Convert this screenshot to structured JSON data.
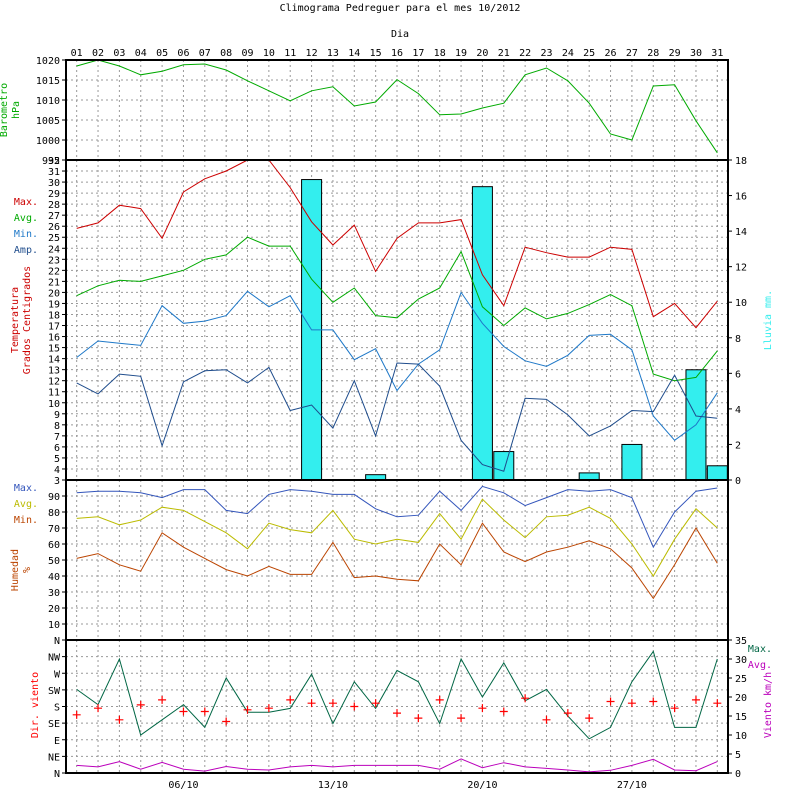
{
  "title": "Climograma Pedreguer para el mes 10/2012",
  "x_axis_title": "Dia",
  "days": [
    "01",
    "02",
    "03",
    "04",
    "05",
    "06",
    "07",
    "08",
    "09",
    "10",
    "11",
    "12",
    "13",
    "14",
    "15",
    "16",
    "17",
    "18",
    "19",
    "20",
    "21",
    "22",
    "23",
    "24",
    "25",
    "26",
    "27",
    "28",
    "29",
    "30",
    "31"
  ],
  "week_labels": [
    "06/10",
    "13/10",
    "20/10",
    "27/10"
  ],
  "colors": {
    "max": "#cc0000",
    "avg": "#00aa00",
    "min": "#1e78c8",
    "amp": "#1e4c8c",
    "rain": "#33eeee",
    "baro": "#00aa00",
    "hum_max": "#3355bb",
    "hum_avg": "#bbbb00",
    "hum_min": "#bb4400",
    "wind_dir": "#ff0000",
    "wind_max": "#006644",
    "wind_avg": "#bb00bb",
    "grid": "#999999"
  },
  "chart_data": [
    {
      "panel": "barometer",
      "type": "line",
      "ylabel": [
        "Barometro",
        "hPa"
      ],
      "ylim": [
        995,
        1020
      ],
      "yticks": [
        995,
        1000,
        1005,
        1010,
        1015,
        1020
      ],
      "series": [
        {
          "key": "baro",
          "values": [
            1018.5,
            1020,
            1018.5,
            1016.3,
            1017.2,
            1018.8,
            1019.0,
            1017.5,
            1014.8,
            1012.3,
            1009.8,
            1012.3,
            1013.3,
            1008.5,
            1009.5,
            1015.1,
            1011.6,
            1006.3,
            1006.5,
            1008.0,
            1009.2,
            1016.3,
            1018.0,
            1014.8,
            1009.2,
            1001.5,
            1000.0,
            1013.5,
            1013.8,
            1004.8,
            996.8
          ]
        }
      ]
    },
    {
      "panel": "temperature",
      "type": "line+bar",
      "ylabel": [
        "Temperatura",
        "Grados Centigrados"
      ],
      "ylim": [
        3,
        32
      ],
      "yticks": [
        3,
        4,
        5,
        6,
        7,
        8,
        9,
        10,
        11,
        12,
        13,
        14,
        15,
        16,
        17,
        18,
        19,
        20,
        21,
        22,
        23,
        24,
        25,
        26,
        27,
        28,
        29,
        30,
        31,
        32
      ],
      "y2label": "Lluvia mm.",
      "y2lim": [
        0,
        18
      ],
      "y2ticks": [
        0,
        2,
        4,
        6,
        8,
        10,
        12,
        14,
        16,
        18
      ],
      "legend": [
        {
          "key": "max",
          "label": "Max."
        },
        {
          "key": "avg",
          "label": "Avg."
        },
        {
          "key": "min",
          "label": "Min."
        },
        {
          "key": "amp",
          "label": "Amp."
        }
      ],
      "series": [
        {
          "key": "max",
          "values": [
            25.8,
            26.3,
            27.9,
            27.6,
            24.9,
            29.1,
            30.3,
            31.0,
            32.0,
            32.0,
            29.5,
            26.4,
            24.3,
            26.1,
            21.9,
            24.9,
            26.3,
            26.3,
            26.6,
            21.6,
            18.8,
            24.1,
            23.6,
            23.2,
            23.2,
            24.1,
            23.9,
            17.8,
            19.0,
            16.8,
            19.2
          ]
        },
        {
          "key": "avg",
          "values": [
            19.7,
            20.6,
            21.1,
            21.0,
            21.5,
            22.0,
            23.0,
            23.4,
            25.0,
            24.2,
            24.2,
            21.2,
            19.1,
            20.4,
            17.9,
            17.7,
            19.4,
            20.4,
            23.7,
            18.7,
            17.0,
            18.6,
            17.6,
            18.1,
            18.9,
            19.8,
            18.8,
            12.6,
            12.0,
            12.3,
            14.7
          ]
        },
        {
          "key": "min",
          "values": [
            14.1,
            15.6,
            15.4,
            15.2,
            18.8,
            17.2,
            17.4,
            17.9,
            20.1,
            18.7,
            19.7,
            16.6,
            16.6,
            13.9,
            14.9,
            11.1,
            13.5,
            14.8,
            20.0,
            17.2,
            15.1,
            13.8,
            13.3,
            14.3,
            16.1,
            16.2,
            14.8,
            8.8,
            6.6,
            8.0,
            10.9
          ]
        },
        {
          "key": "amp",
          "values": [
            11.8,
            10.8,
            12.6,
            12.4,
            6.1,
            11.9,
            12.9,
            13.0,
            11.8,
            13.2,
            9.3,
            9.8,
            7.7,
            12.0,
            7.0,
            13.6,
            13.5,
            11.5,
            6.6,
            4.4,
            3.8,
            10.4,
            10.3,
            8.9,
            7.0,
            7.9,
            9.3,
            9.2,
            12.5,
            8.8,
            8.6
          ]
        }
      ],
      "rain": {
        "key": "rain",
        "values": [
          0,
          0,
          0,
          0,
          0,
          0,
          0,
          0,
          0,
          0,
          0,
          16.9,
          0,
          0,
          0.3,
          0,
          0,
          0,
          0,
          16.5,
          1.6,
          0,
          0,
          0,
          0.4,
          0,
          2.0,
          0,
          0,
          6.2,
          0.8
        ]
      }
    },
    {
      "panel": "humidity",
      "type": "line",
      "ylabel": [
        "Humedad",
        "%"
      ],
      "ylim": [
        0,
        100
      ],
      "yticks": [
        0,
        10,
        20,
        30,
        40,
        50,
        60,
        70,
        80,
        90
      ],
      "ytick_labels": [
        "N",
        "10",
        "20",
        "30",
        "40",
        "50",
        "60",
        "70",
        "80",
        "90"
      ],
      "legend": [
        {
          "key": "hum_max",
          "label": "Max."
        },
        {
          "key": "hum_avg",
          "label": "Avg."
        },
        {
          "key": "hum_min",
          "label": "Min."
        }
      ],
      "series": [
        {
          "key": "hum_max",
          "values": [
            92,
            93,
            93,
            92,
            89,
            94,
            94,
            81,
            79,
            91,
            94,
            93,
            91,
            91,
            82,
            77,
            78,
            93,
            81,
            96,
            92,
            84,
            89,
            94,
            93,
            94,
            89,
            58,
            80,
            93,
            95
          ]
        },
        {
          "key": "hum_avg",
          "values": [
            76,
            77,
            72,
            75,
            83,
            81,
            74,
            67,
            57,
            73,
            69,
            67,
            81,
            63,
            60,
            63,
            61,
            79,
            63,
            88,
            75,
            64,
            77,
            78,
            83,
            76,
            60,
            40,
            63,
            82,
            70
          ]
        },
        {
          "key": "hum_min",
          "values": [
            51,
            54,
            47,
            43,
            67,
            58,
            51,
            44,
            40,
            46,
            41,
            41,
            61,
            39,
            40,
            38,
            37,
            60,
            47,
            73,
            55,
            49,
            55,
            58,
            62,
            57,
            45,
            26,
            47,
            70,
            48
          ]
        }
      ]
    },
    {
      "panel": "wind",
      "type": "line+scatter",
      "ylabel": "Dir. viento",
      "ylim": [
        0,
        8
      ],
      "yticks": [
        0,
        1,
        2,
        3,
        4,
        5,
        6,
        7,
        8
      ],
      "ytick_labels": [
        "N",
        "NE",
        "E",
        "SE",
        "S",
        "SW",
        "W",
        "NW",
        ""
      ],
      "y2label": "Viento km/h",
      "y2lim": [
        0,
        35
      ],
      "y2ticks": [
        0,
        5,
        10,
        15,
        20,
        25,
        30,
        35
      ],
      "legend": [
        {
          "key": "wind_max",
          "label": "Max."
        },
        {
          "key": "wind_avg",
          "label": "Avg."
        }
      ],
      "direction": {
        "key": "wind_dir",
        "values": [
          3.5,
          3.9,
          3.2,
          4.1,
          4.4,
          3.7,
          3.7,
          3.1,
          3.8,
          3.9,
          4.4,
          4.2,
          4.2,
          4.0,
          4.2,
          3.6,
          3.3,
          4.4,
          3.3,
          3.9,
          3.7,
          4.5,
          3.2,
          3.6,
          3.3,
          4.3,
          4.2,
          4.3,
          3.9,
          4.4,
          4.2
        ]
      },
      "series": [
        {
          "key": "wind_max",
          "values": [
            22,
            18,
            30,
            10,
            14,
            18,
            12,
            25,
            16,
            16,
            17,
            26,
            13,
            24,
            17,
            27,
            24,
            13,
            30,
            20,
            29,
            19,
            22,
            15,
            9,
            12,
            24,
            32,
            12,
            12,
            30
          ]
        },
        {
          "key": "wind_avg",
          "values": [
            2,
            1.6,
            3,
            1,
            2.8,
            1,
            0.5,
            1.7,
            1,
            0.8,
            1.6,
            2,
            1.6,
            2,
            2,
            2,
            2,
            1,
            3.7,
            1.4,
            2.7,
            1.6,
            1.2,
            0.8,
            0.3,
            0.7,
            2,
            3.6,
            0.8,
            0.6,
            3
          ]
        }
      ]
    }
  ]
}
